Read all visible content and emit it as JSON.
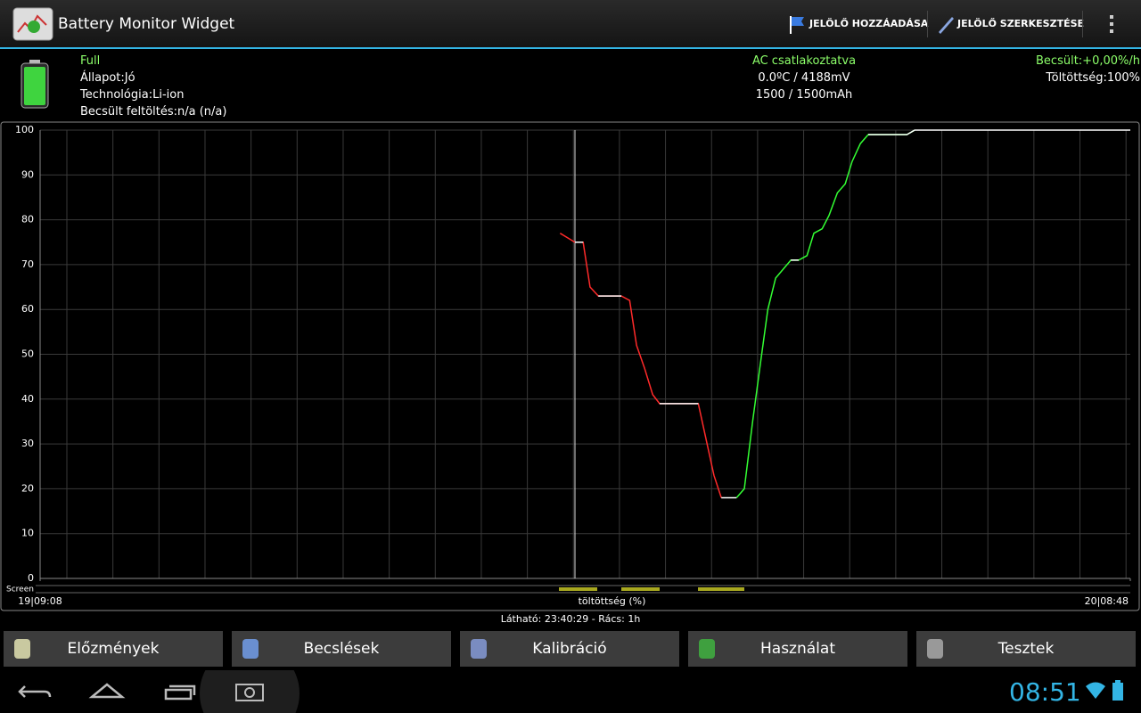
{
  "action_bar": {
    "title": "Battery Monitor Widget",
    "actions": [
      "JELÖLŐ HOZZÁADÁSA",
      "JELÖLŐ SZERKESZTÉSE"
    ]
  },
  "status": {
    "left": [
      "Full",
      "Állapot:Jó",
      "Technológia:Li-ion",
      "Becsült feltöltés:n/a (n/a)"
    ],
    "center": [
      "AC csatlakoztatva",
      "0.0ºC / 4188mV",
      "1500 / 1500mAh"
    ],
    "right": [
      "Becsült:+0,00%/h",
      "Töltöttség:100%"
    ]
  },
  "chart_data": {
    "type": "line",
    "xlabel": "töltöttség (%)",
    "strip_label": "Screen",
    "x": [
      11.29,
      11.61,
      11.79,
      11.94,
      12.12,
      12.62,
      12.8,
      12.95,
      13.12,
      13.3,
      13.45,
      14.29,
      14.46,
      14.63,
      14.79,
      15.12,
      15.29,
      15.47,
      15.64,
      15.8,
      15.97,
      16.3,
      16.47,
      16.65,
      16.8,
      16.98,
      17.13,
      17.31,
      17.48,
      17.63,
      17.81,
      17.98,
      18.82,
      18.99,
      23.67
    ],
    "series": [
      {
        "color": "#ff2a2a",
        "values": [
          77,
          75,
          75,
          65,
          63,
          63,
          62,
          52,
          47,
          41,
          39,
          39,
          31,
          23,
          18,
          null,
          null,
          null,
          null,
          null,
          null,
          null,
          null,
          null,
          null,
          null,
          null,
          null,
          null,
          null,
          null,
          null,
          null,
          null,
          null
        ]
      },
      {
        "color": "#33ff33",
        "values": [
          null,
          null,
          null,
          null,
          null,
          null,
          null,
          null,
          null,
          null,
          null,
          null,
          null,
          null,
          null,
          18,
          20,
          35,
          48,
          60,
          67,
          71,
          71,
          72,
          77,
          78,
          81,
          86,
          88,
          93,
          97,
          99,
          99,
          100,
          null
        ]
      },
      {
        "color": "#ffffff",
        "values": [
          null,
          75,
          75,
          null,
          63,
          63,
          null,
          null,
          null,
          null,
          39,
          39,
          null,
          null,
          18,
          18,
          null,
          null,
          null,
          null,
          null,
          71,
          71,
          null,
          null,
          null,
          null,
          null,
          null,
          null,
          null,
          99,
          99,
          100,
          100
        ]
      }
    ],
    "xlim": [
      0,
      23.67
    ],
    "xticks": [
      {
        "value": 0,
        "label": "19|09:08"
      },
      {
        "value": 23.67,
        "label": "20|08:48"
      }
    ],
    "ylim": [
      0,
      100
    ],
    "yticks": [
      0,
      10,
      20,
      30,
      40,
      50,
      60,
      70,
      80,
      90,
      100
    ],
    "grid": true
  },
  "footer": "Látható: 23:40:29 - Rács: 1h",
  "tabs": [
    "Előzmények",
    "Becslések",
    "Kalibráció",
    "Használat",
    "Tesztek"
  ],
  "system_bar": {
    "clock": "08:51"
  }
}
